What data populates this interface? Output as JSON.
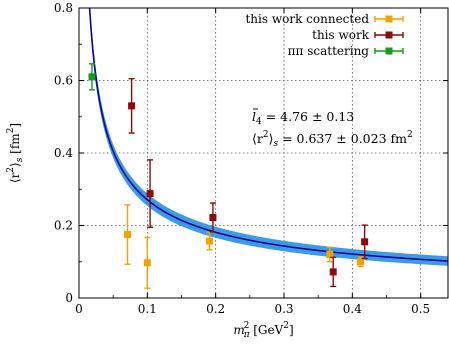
{
  "chart_data": {
    "type": "scatter",
    "xlabel": "m_π^2 [GeV^2]",
    "ylabel": "⟨r^2⟩_s [fm^2]",
    "xlim": [
      0,
      0.54
    ],
    "ylim": [
      0,
      0.8
    ],
    "x_ticks": [
      0,
      0.1,
      0.2,
      0.3,
      0.4,
      0.5
    ],
    "y_ticks": [
      0,
      0.2,
      0.4,
      0.6,
      0.8
    ],
    "x_tick_labels": [
      "0",
      "0.1",
      "0.2",
      "0.3",
      "0.4",
      "0.5"
    ],
    "y_tick_labels": [
      "0",
      "0.2",
      "0.4",
      "0.6",
      "0.8"
    ],
    "grid": true,
    "legend_position": "top-right",
    "series": [
      {
        "name": "this work connected",
        "color": "#f5a100",
        "points": [
          {
            "x": 0.071,
            "y": 0.175,
            "err": 0.082
          },
          {
            "x": 0.1,
            "y": 0.097,
            "err": 0.07
          },
          {
            "x": 0.191,
            "y": 0.157,
            "err": 0.024
          },
          {
            "x": 0.367,
            "y": 0.12,
            "err": 0.02
          },
          {
            "x": 0.412,
            "y": 0.1,
            "err": 0.013
          }
        ]
      },
      {
        "name": "this work",
        "color": "#8b0a0a",
        "points": [
          {
            "x": 0.077,
            "y": 0.53,
            "err": 0.075
          },
          {
            "x": 0.104,
            "y": 0.288,
            "err": 0.093
          },
          {
            "x": 0.196,
            "y": 0.222,
            "err": 0.04
          },
          {
            "x": 0.372,
            "y": 0.072,
            "err": 0.04
          },
          {
            "x": 0.418,
            "y": 0.155,
            "err": 0.046
          }
        ]
      },
      {
        "name": "ππ scattering",
        "color": "#1a9a1a",
        "points": [
          {
            "x": 0.019,
            "y": 0.61,
            "err": 0.036
          }
        ]
      }
    ],
    "fit_band": {
      "color": "#3d9ae8",
      "line_color": "#0a0a8c",
      "center_at_x0_1": 0.271,
      "width_at_x0_1": 0.017
    },
    "annotations": {
      "l4_sym": "l",
      "l4_sub": "4",
      "l4_value": " = 4.76 ± 0.13",
      "r2_lhs": "⟨r",
      "r2_sup": "2",
      "r2_rangle": "⟩",
      "r2_sub": "s",
      "r2_value": " = 0.637 ± 0.023 fm",
      "r2_unit_sup": "2"
    },
    "xlabel_parts": {
      "m": "m",
      "sup": "2",
      "sub": "π",
      "unit": " [GeV",
      "unit_sup": "2",
      "close": "]"
    },
    "ylabel_parts": {
      "open": "⟨r",
      "sup": "2",
      "close": "⟩",
      "sub": "s",
      "unit": " [fm",
      "unit_sup": "2",
      "end": "]"
    }
  }
}
